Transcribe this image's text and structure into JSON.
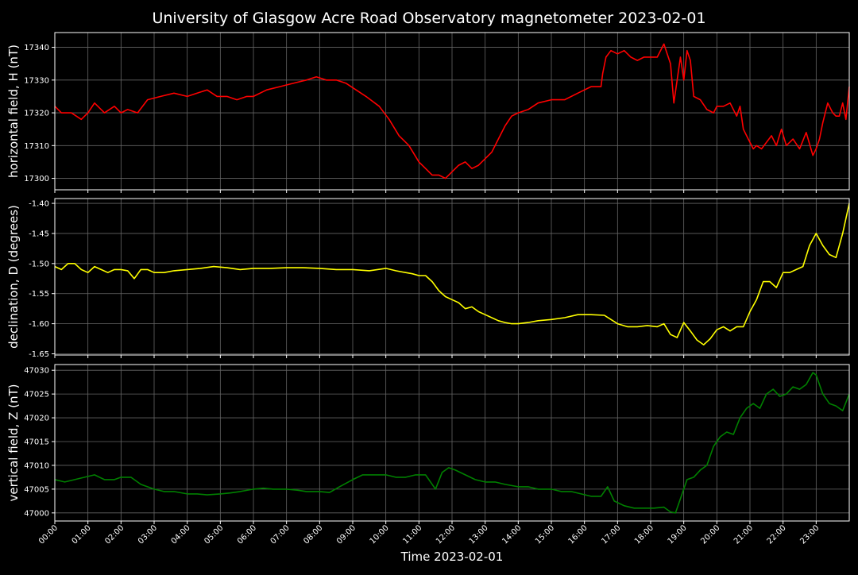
{
  "title": "University of Glasgow Acre Road Observatory magnetometer 2023-02-01",
  "xlabel": "Time 2023-02-01",
  "x_ticks": [
    "00:00",
    "01:00",
    "02:00",
    "03:00",
    "04:00",
    "05:00",
    "06:00",
    "07:00",
    "08:00",
    "09:00",
    "10:00",
    "11:00",
    "12:00",
    "13:00",
    "14:00",
    "15:00",
    "16:00",
    "17:00",
    "18:00",
    "19:00",
    "20:00",
    "21:00",
    "22:00",
    "23:00"
  ],
  "colors": {
    "background": "#000000",
    "grid": "#666666",
    "axes": "#ffffff",
    "h": "#ff0000",
    "d": "#ffff00",
    "z": "#008000"
  },
  "chart_data": [
    {
      "type": "line",
      "ylabel": "horizontal field, H (nT)",
      "x_unit": "hours since 00:00",
      "xlim": [
        0,
        24
      ],
      "ylim": [
        17296.5,
        17344.5
      ],
      "y_ticks": [
        17300,
        17310,
        17320,
        17330,
        17340
      ],
      "grid": true,
      "series": [
        {
          "color": "#ff0000",
          "x": [
            0,
            0.2,
            0.5,
            0.8,
            1.0,
            1.2,
            1.5,
            1.8,
            2.0,
            2.2,
            2.5,
            2.8,
            3.2,
            3.6,
            4.0,
            4.3,
            4.6,
            4.9,
            5.2,
            5.5,
            5.8,
            6.0,
            6.4,
            6.8,
            7.2,
            7.6,
            7.9,
            8.2,
            8.5,
            8.8,
            9.1,
            9.4,
            9.8,
            10.1,
            10.4,
            10.7,
            11.0,
            11.2,
            11.4,
            11.6,
            11.8,
            12.0,
            12.2,
            12.4,
            12.6,
            12.8,
            13.0,
            13.2,
            13.4,
            13.6,
            13.8,
            14.0,
            14.3,
            14.6,
            15.0,
            15.4,
            15.8,
            16.2,
            16.5,
            16.55,
            16.65,
            16.8,
            17.0,
            17.2,
            17.4,
            17.6,
            17.8,
            18.0,
            18.2,
            18.4,
            18.5,
            18.6,
            18.7,
            18.9,
            19.0,
            19.1,
            19.2,
            19.3,
            19.5,
            19.7,
            19.9,
            20.0,
            20.2,
            20.4,
            20.6,
            20.7,
            20.8,
            20.95,
            21.1,
            21.2,
            21.35,
            21.5,
            21.65,
            21.8,
            21.95,
            22.1,
            22.3,
            22.5,
            22.7,
            22.9,
            23.0,
            23.1,
            23.2,
            23.35,
            23.5,
            23.6,
            23.7,
            23.8,
            23.9,
            24.0
          ],
          "y": [
            17322,
            17320,
            17320,
            17318,
            17320,
            17323,
            17320,
            17322,
            17320,
            17321,
            17320,
            17324,
            17325,
            17326,
            17325,
            17326,
            17327,
            17325,
            17325,
            17324,
            17325,
            17325,
            17327,
            17328,
            17329,
            17330,
            17331,
            17330,
            17330,
            17329,
            17327,
            17325,
            17322,
            17318,
            17313,
            17310,
            17305,
            17303,
            17301,
            17301,
            17300,
            17302,
            17304,
            17305,
            17303,
            17304,
            17306,
            17308,
            17312,
            17316,
            17319,
            17320,
            17321,
            17323,
            17324,
            17324,
            17326,
            17328,
            17328,
            17332,
            17337,
            17339,
            17338,
            17339,
            17337,
            17336,
            17337,
            17337,
            17337,
            17341,
            17338,
            17335,
            17323,
            17337,
            17330,
            17339,
            17336,
            17325,
            17324,
            17321,
            17320,
            17322,
            17322,
            17323,
            17319,
            17322,
            17315,
            17312,
            17309,
            17310,
            17309,
            17311,
            17313,
            17310,
            17315,
            17310,
            17312,
            17309,
            17314,
            17307,
            17309,
            17312,
            17317,
            17323,
            17320,
            17319,
            17319,
            17323,
            17318,
            17328
          ]
        }
      ]
    },
    {
      "type": "line",
      "ylabel": "declination, D (degrees)",
      "x_unit": "hours since 00:00",
      "xlim": [
        0,
        24
      ],
      "ylim": [
        -1.652,
        -1.392
      ],
      "y_ticks": [
        -1.65,
        -1.6,
        -1.55,
        -1.5,
        -1.45,
        -1.4
      ],
      "grid": true,
      "series": [
        {
          "color": "#ffff00",
          "x": [
            0,
            0.2,
            0.4,
            0.6,
            0.8,
            1.0,
            1.2,
            1.4,
            1.6,
            1.8,
            2.0,
            2.2,
            2.4,
            2.6,
            2.8,
            3.0,
            3.3,
            3.6,
            4.0,
            4.4,
            4.8,
            5.2,
            5.6,
            6.0,
            6.5,
            7.0,
            7.5,
            8.0,
            8.5,
            9.0,
            9.5,
            10.0,
            10.3,
            10.6,
            10.8,
            11.0,
            11.2,
            11.4,
            11.6,
            11.8,
            12.0,
            12.2,
            12.4,
            12.6,
            12.8,
            13.0,
            13.2,
            13.4,
            13.6,
            13.8,
            14.0,
            14.3,
            14.6,
            15.0,
            15.4,
            15.8,
            16.2,
            16.6,
            17.0,
            17.3,
            17.6,
            17.9,
            18.2,
            18.4,
            18.6,
            18.8,
            19.0,
            19.2,
            19.4,
            19.6,
            19.8,
            20.0,
            20.2,
            20.4,
            20.6,
            20.8,
            21.0,
            21.2,
            21.4,
            21.6,
            21.8,
            22.0,
            22.2,
            22.4,
            22.6,
            22.8,
            23.0,
            23.2,
            23.4,
            23.6,
            23.8,
            24.0
          ],
          "y": [
            -1.505,
            -1.51,
            -1.5,
            -1.5,
            -1.51,
            -1.515,
            -1.505,
            -1.51,
            -1.515,
            -1.51,
            -1.51,
            -1.512,
            -1.525,
            -1.51,
            -1.51,
            -1.515,
            -1.515,
            -1.512,
            -1.51,
            -1.508,
            -1.505,
            -1.507,
            -1.51,
            -1.508,
            -1.508,
            -1.507,
            -1.507,
            -1.508,
            -1.51,
            -1.51,
            -1.512,
            -1.508,
            -1.512,
            -1.515,
            -1.517,
            -1.52,
            -1.52,
            -1.53,
            -1.545,
            -1.555,
            -1.56,
            -1.565,
            -1.575,
            -1.572,
            -1.58,
            -1.585,
            -1.59,
            -1.595,
            -1.598,
            -1.6,
            -1.6,
            -1.598,
            -1.595,
            -1.593,
            -1.59,
            -1.585,
            -1.585,
            -1.586,
            -1.6,
            -1.605,
            -1.605,
            -1.603,
            -1.605,
            -1.6,
            -1.618,
            -1.623,
            -1.598,
            -1.612,
            -1.627,
            -1.635,
            -1.625,
            -1.61,
            -1.605,
            -1.612,
            -1.605,
            -1.605,
            -1.58,
            -1.56,
            -1.53,
            -1.53,
            -1.54,
            -1.515,
            -1.515,
            -1.51,
            -1.505,
            -1.47,
            -1.45,
            -1.47,
            -1.485,
            -1.49,
            -1.45,
            -1.4
          ]
        }
      ]
    },
    {
      "type": "line",
      "ylabel": "vertical field, Z (nT)",
      "x_unit": "hours since 00:00",
      "xlim": [
        0,
        24
      ],
      "ylim": [
        46998.3,
        47031.2
      ],
      "y_ticks": [
        47000,
        47005,
        47010,
        47015,
        47020,
        47025,
        47030
      ],
      "grid": true,
      "series": [
        {
          "color": "#008000",
          "x": [
            0,
            0.3,
            0.6,
            0.9,
            1.2,
            1.5,
            1.8,
            2.0,
            2.3,
            2.6,
            3.0,
            3.3,
            3.6,
            4.0,
            4.3,
            4.6,
            5.0,
            5.3,
            5.6,
            6.0,
            6.3,
            6.6,
            7.0,
            7.3,
            7.6,
            8.0,
            8.3,
            8.6,
            9.0,
            9.3,
            9.6,
            10.0,
            10.3,
            10.6,
            10.9,
            11.2,
            11.5,
            11.7,
            11.9,
            12.1,
            12.4,
            12.7,
            13.0,
            13.3,
            13.6,
            14.0,
            14.3,
            14.6,
            15.0,
            15.3,
            15.6,
            15.9,
            16.2,
            16.5,
            16.7,
            16.9,
            17.2,
            17.5,
            17.8,
            18.1,
            18.4,
            18.6,
            18.75,
            18.9,
            19.1,
            19.3,
            19.5,
            19.7,
            19.9,
            20.1,
            20.3,
            20.5,
            20.7,
            20.9,
            21.1,
            21.3,
            21.5,
            21.7,
            21.9,
            22.1,
            22.3,
            22.5,
            22.7,
            22.9,
            23.0,
            23.2,
            23.4,
            23.6,
            23.8,
            24.0
          ],
          "y": [
            47007,
            47006.5,
            47007,
            47007.5,
            47008,
            47007,
            47007,
            47007.5,
            47007.5,
            47006,
            47005,
            47004.5,
            47004.5,
            47004,
            47004,
            47003.8,
            47004,
            47004.2,
            47004.5,
            47005,
            47005.2,
            47005,
            47005,
            47004.8,
            47004.5,
            47004.5,
            47004.3,
            47005.5,
            47007,
            47008,
            47008,
            47008,
            47007.5,
            47007.5,
            47008,
            47008,
            47005,
            47008.5,
            47009.5,
            47009,
            47008,
            47007,
            47006.5,
            47006.5,
            47006,
            47005.5,
            47005.5,
            47005,
            47005,
            47004.5,
            47004.5,
            47004,
            47003.5,
            47003.5,
            47005.5,
            47002.5,
            47001.5,
            47001,
            47001,
            47001,
            47001.2,
            47000.2,
            47000,
            47003,
            47007,
            47007.5,
            47009,
            47010,
            47014,
            47016,
            47017,
            47016.5,
            47020,
            47022,
            47023,
            47022,
            47025,
            47026,
            47024.5,
            47025,
            47026.5,
            47026,
            47027,
            47029.5,
            47029,
            47025,
            47023,
            47022.5,
            47021.5,
            47025
          ]
        }
      ]
    }
  ]
}
